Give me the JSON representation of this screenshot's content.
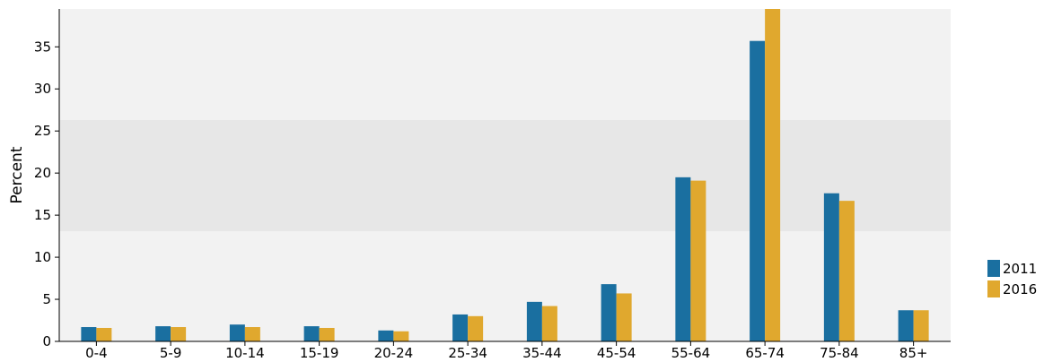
{
  "chart_data": {
    "type": "bar",
    "title": "",
    "xlabel": "",
    "ylabel": "Percent",
    "ylim": [
      0,
      39.5
    ],
    "yticks": [
      0,
      5,
      10,
      15,
      20,
      25,
      30,
      35
    ],
    "categories": [
      "0-4",
      "5-9",
      "10-14",
      "15-19",
      "20-24",
      "25-34",
      "35-44",
      "45-54",
      "55-64",
      "65-74",
      "75-84",
      "85+"
    ],
    "series": [
      {
        "name": "2011",
        "color": "#1a6fa0",
        "values": [
          1.7,
          1.8,
          2.0,
          1.8,
          1.3,
          3.2,
          4.7,
          6.8,
          19.5,
          35.7,
          17.6,
          3.7
        ]
      },
      {
        "name": "2016",
        "color": "#e0a82e",
        "values": [
          1.6,
          1.7,
          1.7,
          1.6,
          1.2,
          3.0,
          4.2,
          5.7,
          19.1,
          39.5,
          16.7,
          3.7
        ]
      }
    ],
    "background_band_color": "#e7e7e7",
    "background_color": "#f2f2f2",
    "legend_position": "right"
  }
}
